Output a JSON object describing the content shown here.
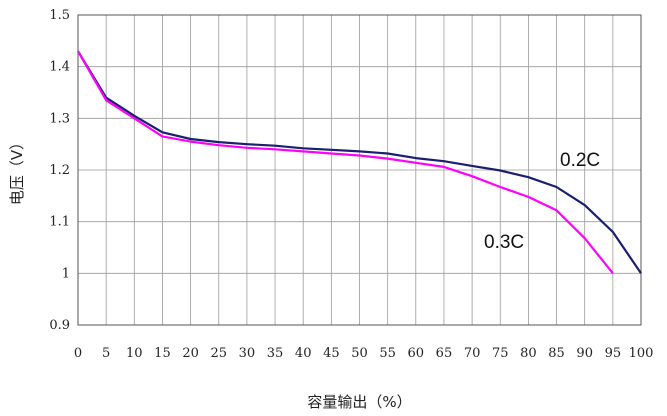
{
  "chart_data": {
    "type": "line",
    "xlabel": "容量输出（%）",
    "ylabel": "电压（V）",
    "xlim": [
      0,
      100
    ],
    "ylim": [
      0.9,
      1.5
    ],
    "x_ticks": [
      0,
      5,
      10,
      15,
      20,
      25,
      30,
      35,
      40,
      45,
      50,
      55,
      60,
      65,
      70,
      75,
      80,
      85,
      90,
      95,
      100
    ],
    "y_ticks": [
      0.9,
      1,
      1.1,
      1.2,
      1.3,
      1.4,
      1.5
    ],
    "y_tick_labels": [
      "0.9",
      "1",
      "1.1",
      "1.2",
      "1.3",
      "1.4",
      "1.5"
    ],
    "grid": true,
    "series": [
      {
        "name": "0.2C",
        "color": "#1a1f6e",
        "x": [
          0,
          5,
          10,
          15,
          20,
          25,
          30,
          35,
          40,
          45,
          50,
          55,
          60,
          65,
          70,
          75,
          80,
          85,
          90,
          95,
          100
        ],
        "values": [
          1.43,
          1.34,
          1.305,
          1.273,
          1.26,
          1.254,
          1.25,
          1.247,
          1.242,
          1.239,
          1.236,
          1.232,
          1.223,
          1.217,
          1.208,
          1.199,
          1.186,
          1.167,
          1.132,
          1.08,
          1.0
        ]
      },
      {
        "name": "0.3C",
        "color": "#ff00ff",
        "x": [
          0,
          5,
          10,
          15,
          20,
          25,
          30,
          35,
          40,
          45,
          50,
          55,
          60,
          65,
          70,
          75,
          80,
          85,
          90,
          95
        ],
        "values": [
          1.43,
          1.335,
          1.3,
          1.265,
          1.255,
          1.248,
          1.243,
          1.24,
          1.236,
          1.232,
          1.228,
          1.222,
          1.214,
          1.206,
          1.188,
          1.167,
          1.148,
          1.122,
          1.068,
          1.0
        ]
      }
    ]
  }
}
